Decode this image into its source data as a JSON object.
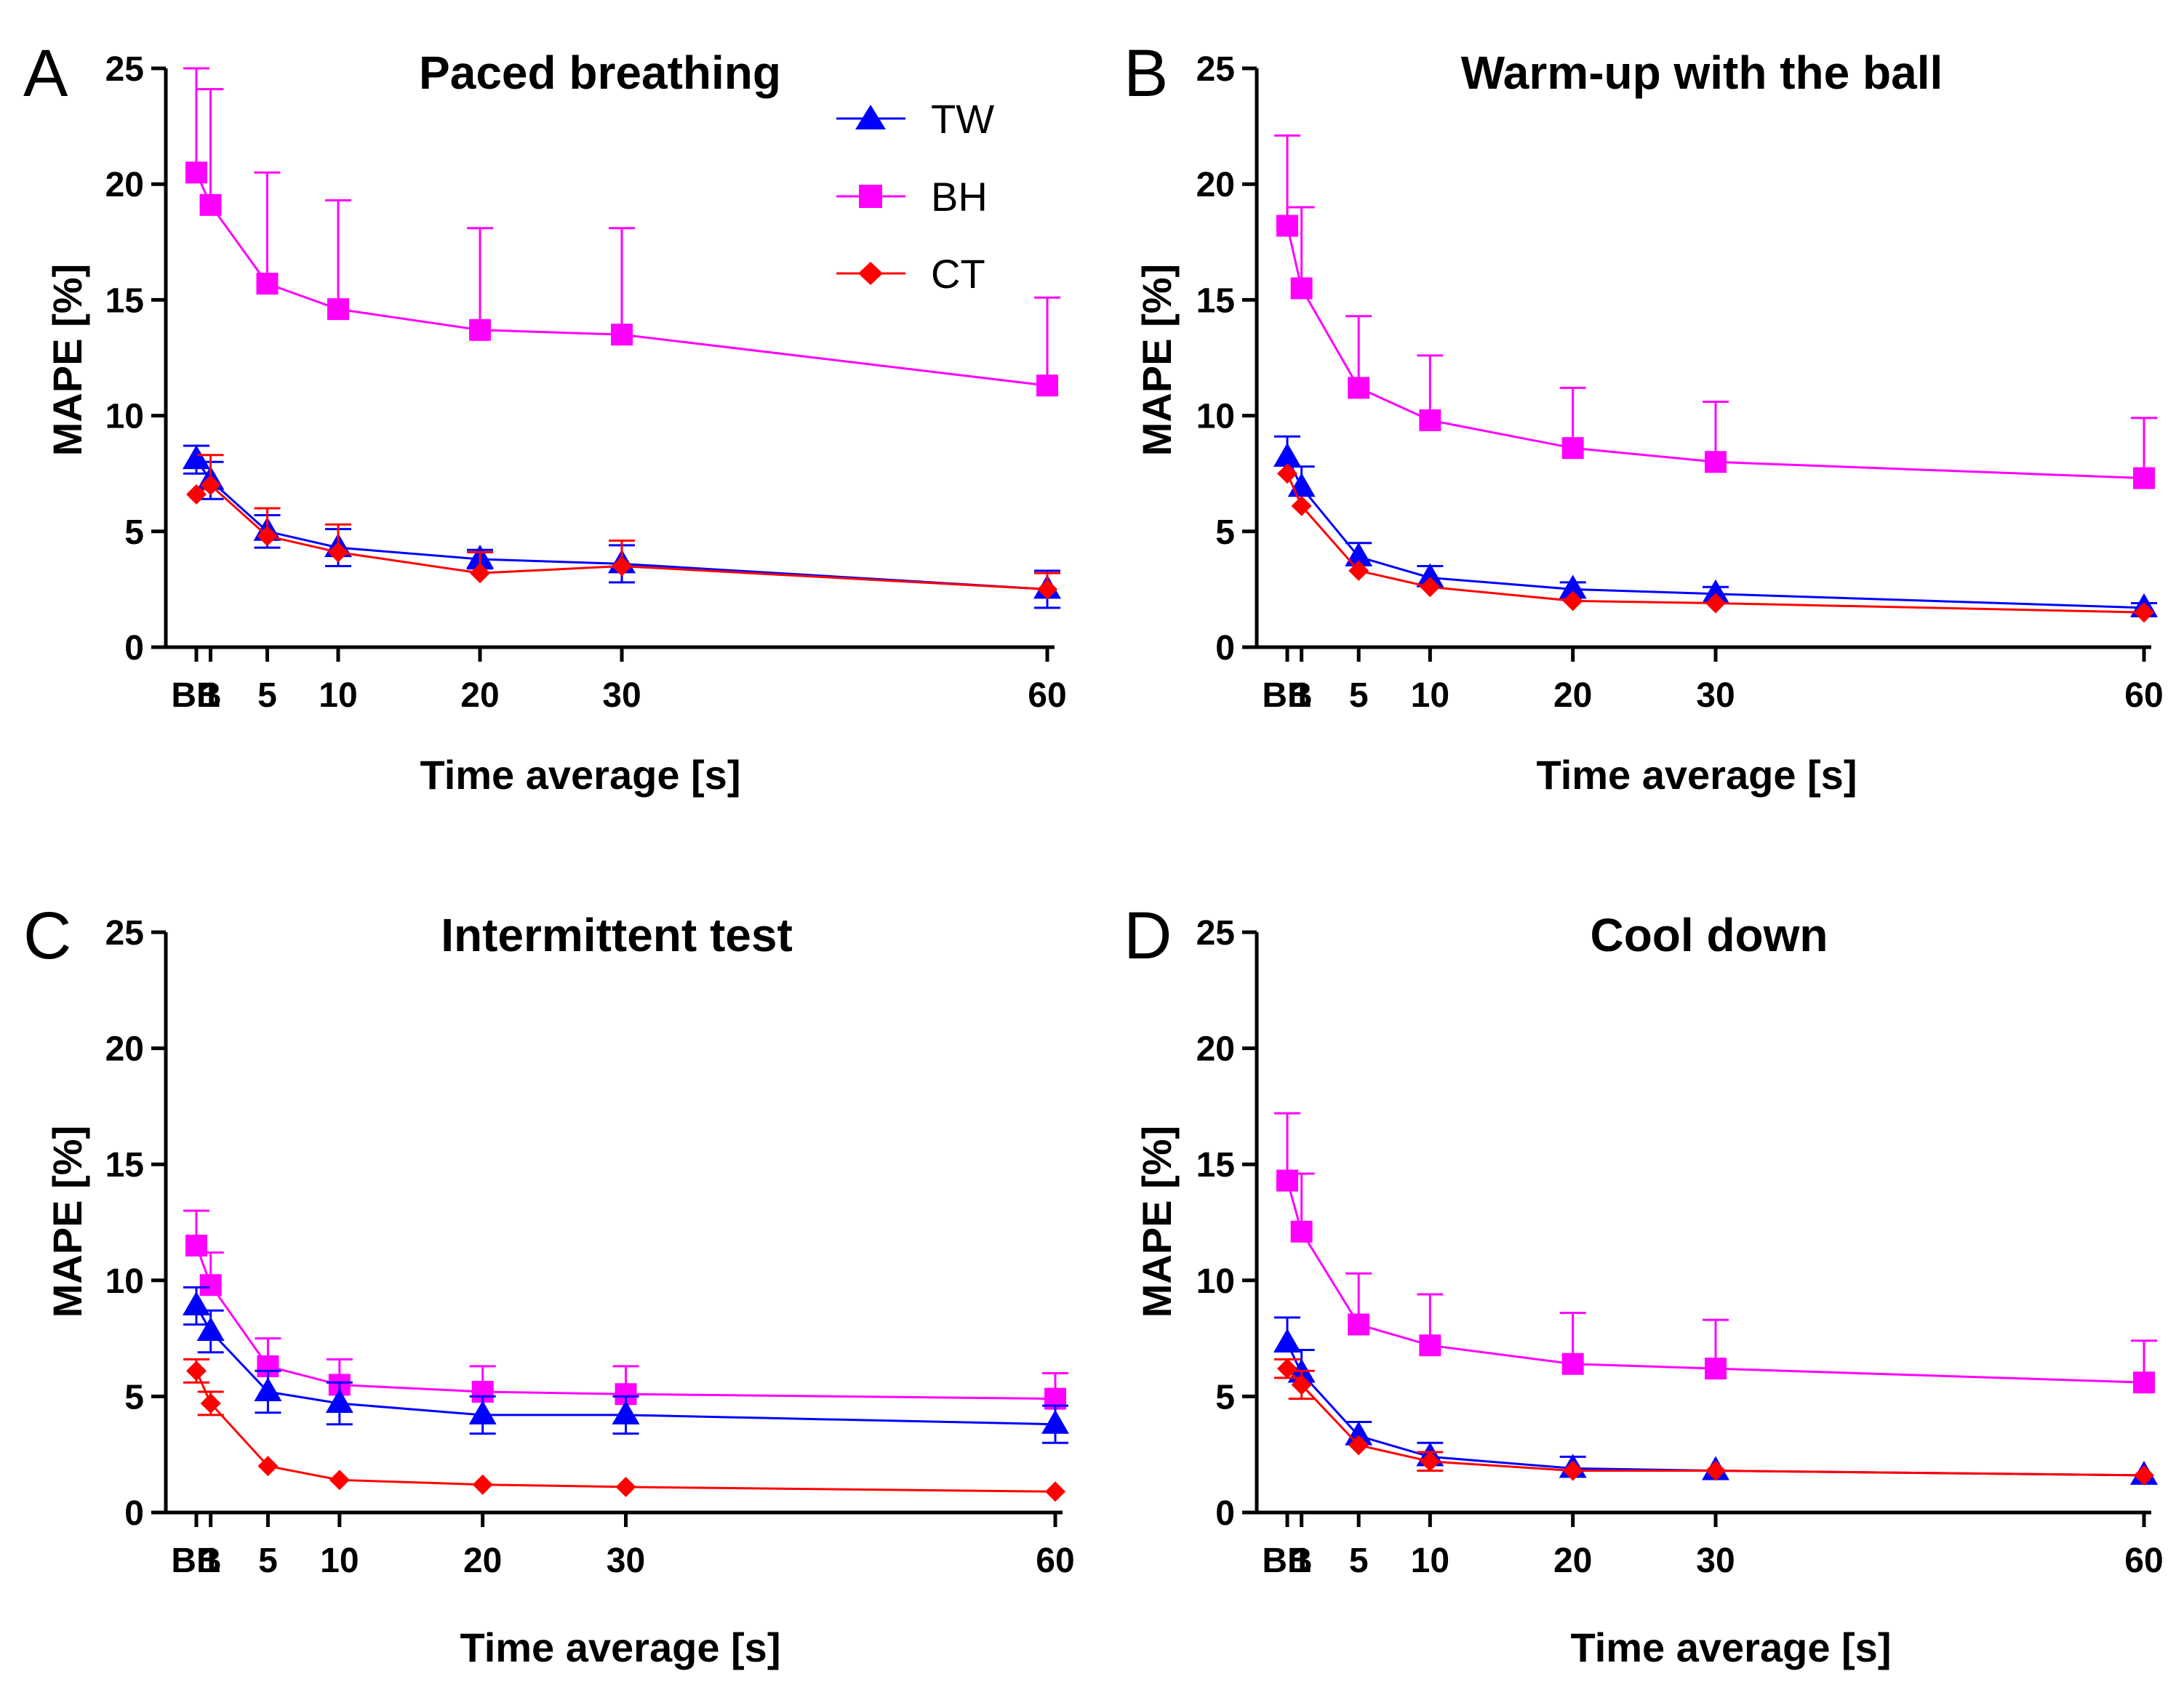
{
  "legend": [
    {
      "name": "TW",
      "color": "#0000ff",
      "marker": "triangle"
    },
    {
      "name": "BH",
      "color": "#ff00ff",
      "marker": "square"
    },
    {
      "name": "CT",
      "color": "#ff0000",
      "marker": "diamond"
    }
  ],
  "chart_data": [
    {
      "panel": "A",
      "type": "line",
      "title": "Paced breathing",
      "xlabel": "Time average [s]",
      "ylabel": "MAPE [%]",
      "ylim": [
        0,
        25
      ],
      "yticks": [
        0,
        5,
        10,
        15,
        20,
        25
      ],
      "x": [
        0,
        1,
        5,
        10,
        20,
        30,
        60
      ],
      "xtick_labels": [
        "BB",
        "1",
        "5",
        "10",
        "20",
        "30",
        "60"
      ],
      "series": [
        {
          "name": "BH",
          "values": [
            20.5,
            19.1,
            15.7,
            14.6,
            13.7,
            13.5,
            11.3
          ],
          "err": [
            4.5,
            5.0,
            4.8,
            4.7,
            4.4,
            4.6,
            3.8
          ],
          "err_dir": "up"
        },
        {
          "name": "TW",
          "values": [
            8.1,
            7.2,
            5.0,
            4.3,
            3.8,
            3.6,
            2.5
          ],
          "err": [
            0.6,
            0.8,
            0.7,
            0.8,
            0.4,
            0.8,
            0.8
          ],
          "err_dir": "both"
        },
        {
          "name": "CT",
          "values": [
            6.6,
            7.0,
            4.8,
            4.1,
            3.2,
            3.5,
            2.5
          ],
          "err": [
            0.0,
            1.3,
            1.2,
            1.2,
            0.9,
            1.1,
            0.7
          ],
          "err_dir": "up"
        }
      ]
    },
    {
      "panel": "B",
      "type": "line",
      "title": "Warm-up with the ball",
      "xlabel": "Time average [s]",
      "ylabel": "MAPE [%]",
      "ylim": [
        0,
        25
      ],
      "yticks": [
        0,
        5,
        10,
        15,
        20,
        25
      ],
      "x": [
        0,
        1,
        5,
        10,
        20,
        30,
        60
      ],
      "xtick_labels": [
        "BB",
        "1",
        "5",
        "10",
        "20",
        "30",
        "60"
      ],
      "series": [
        {
          "name": "BH",
          "values": [
            18.2,
            15.5,
            11.2,
            9.8,
            8.6,
            8.0,
            7.3
          ],
          "err": [
            3.9,
            3.5,
            3.1,
            2.8,
            2.6,
            2.6,
            2.6
          ],
          "err_dir": "up"
        },
        {
          "name": "TW",
          "values": [
            8.2,
            6.9,
            3.9,
            3.0,
            2.5,
            2.3,
            1.7
          ],
          "err": [
            0.9,
            0.9,
            0.6,
            0.5,
            0.3,
            0.3,
            0.2
          ],
          "err_dir": "up"
        },
        {
          "name": "CT",
          "values": [
            7.5,
            6.1,
            3.3,
            2.6,
            2.0,
            1.9,
            1.5
          ],
          "err": [
            0,
            0,
            0,
            0,
            0,
            0,
            0
          ],
          "err_dir": "up"
        }
      ]
    },
    {
      "panel": "C",
      "type": "line",
      "title": "Intermittent test",
      "xlabel": "Time average [s]",
      "ylabel": "MAPE [%]",
      "ylim": [
        0,
        25
      ],
      "yticks": [
        0,
        5,
        10,
        15,
        20,
        25
      ],
      "x": [
        0,
        1,
        5,
        10,
        20,
        30,
        60
      ],
      "xtick_labels": [
        "BB",
        "1",
        "5",
        "10",
        "20",
        "30",
        "60"
      ],
      "series": [
        {
          "name": "BH",
          "values": [
            11.5,
            9.8,
            6.3,
            5.5,
            5.2,
            5.1,
            4.9
          ],
          "err": [
            1.5,
            1.4,
            1.2,
            1.1,
            1.1,
            1.2,
            1.1
          ],
          "err_dir": "up"
        },
        {
          "name": "TW",
          "values": [
            8.9,
            7.8,
            5.2,
            4.7,
            4.2,
            4.2,
            3.8
          ],
          "err": [
            0.8,
            0.9,
            0.9,
            0.9,
            0.8,
            0.8,
            0.8
          ],
          "err_dir": "both"
        },
        {
          "name": "CT",
          "values": [
            6.1,
            4.7,
            2.0,
            1.4,
            1.2,
            1.1,
            0.9
          ],
          "err": [
            0.5,
            0.5,
            0,
            0,
            0,
            0,
            0
          ],
          "err_dir": "both"
        }
      ]
    },
    {
      "panel": "D",
      "type": "line",
      "title": "Cool down",
      "xlabel": "Time average [s]",
      "ylabel": "MAPE [%]",
      "ylim": [
        0,
        25
      ],
      "yticks": [
        0,
        5,
        10,
        15,
        20,
        25
      ],
      "x": [
        0,
        1,
        5,
        10,
        20,
        30,
        60
      ],
      "xtick_labels": [
        "BB",
        "1",
        "5",
        "10",
        "20",
        "30",
        "60"
      ],
      "series": [
        {
          "name": "BH",
          "values": [
            14.3,
            12.1,
            8.1,
            7.2,
            6.4,
            6.2,
            5.6
          ],
          "err": [
            2.9,
            2.5,
            2.2,
            2.2,
            2.2,
            2.1,
            1.8
          ],
          "err_dir": "up"
        },
        {
          "name": "TW",
          "values": [
            7.3,
            6.0,
            3.3,
            2.4,
            1.9,
            1.8,
            1.6
          ],
          "err": [
            1.1,
            1.0,
            0.6,
            0.6,
            0.5,
            0,
            0
          ],
          "err_dir": "up"
        },
        {
          "name": "CT",
          "values": [
            6.2,
            5.5,
            2.9,
            2.2,
            1.8,
            1.8,
            1.6
          ],
          "err": [
            0.4,
            0.6,
            0,
            0.4,
            0,
            0,
            0
          ],
          "err_dir": "both"
        }
      ]
    }
  ]
}
